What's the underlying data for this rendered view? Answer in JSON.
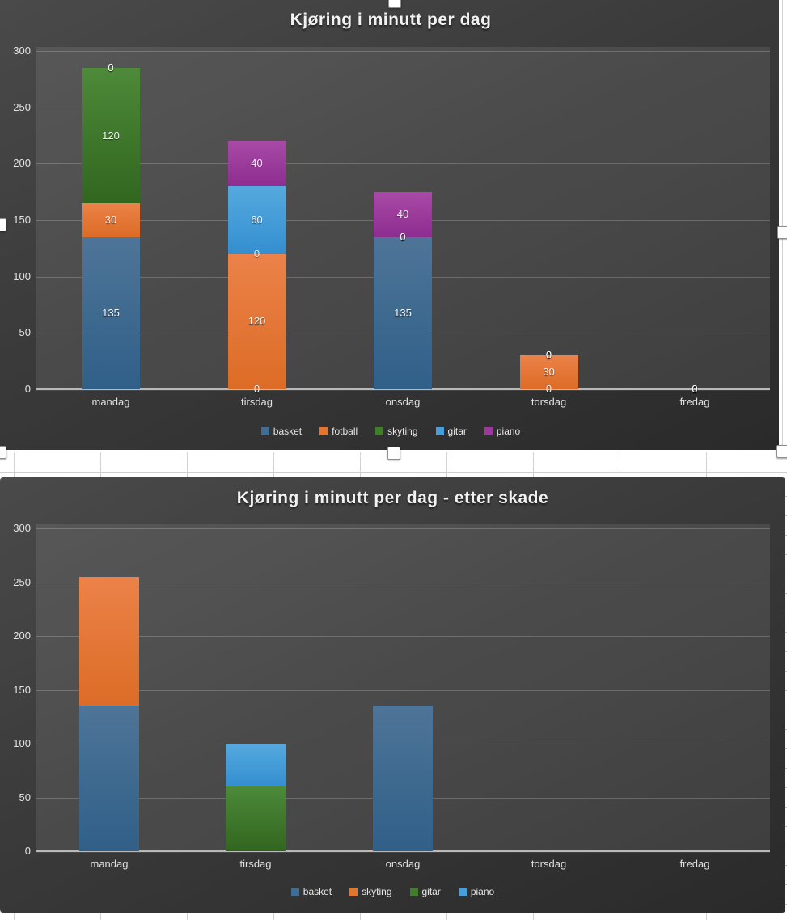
{
  "chart_data": [
    {
      "type": "stacked-bar",
      "title": "Kjøring i minutt per dag",
      "categories": [
        "mandag",
        "tirsdag",
        "onsdag",
        "torsdag",
        "fredag"
      ],
      "series": [
        {
          "name": "basket",
          "color": "#3f6d94",
          "color_light": "#4e7598",
          "color_dark": "#305f88",
          "values": [
            135,
            0,
            135,
            0,
            0
          ]
        },
        {
          "name": "fotball",
          "color": "#e4752f",
          "color_light": "#ec8249",
          "color_dark": "#dc6c26",
          "values": [
            30,
            120,
            0,
            30,
            0
          ]
        },
        {
          "name": "skyting",
          "color": "#427d2e",
          "color_light": "#4d8a39",
          "color_dark": "#31661f",
          "values": [
            120,
            0,
            0,
            0,
            0
          ]
        },
        {
          "name": "gitar",
          "color": "#469edb",
          "color_light": "#55a9de",
          "color_dark": "#348fd0",
          "values": [
            0,
            60,
            0,
            0,
            0
          ]
        },
        {
          "name": "piano",
          "color": "#9c3a9b",
          "color_light": "#a94aa6",
          "color_dark": "#8d2d90",
          "values": [
            0,
            40,
            40,
            0,
            0
          ]
        }
      ],
      "ylim": [
        0,
        300
      ],
      "yticks": [
        0,
        50,
        100,
        150,
        200,
        250,
        300
      ],
      "grid": true,
      "legend_position": "bottom",
      "data_labels": true
    },
    {
      "type": "stacked-bar",
      "title": "Kjøring i minutt per dag - etter skade",
      "categories": [
        "mandag",
        "tirsdag",
        "onsdag",
        "torsdag",
        "fredag"
      ],
      "series": [
        {
          "name": "basket",
          "color": "#3f6d94",
          "color_light": "#4e7598",
          "color_dark": "#305f88",
          "values": [
            135,
            0,
            135,
            0,
            0
          ]
        },
        {
          "name": "skyting",
          "color": "#e4752f",
          "color_light": "#ec8249",
          "color_dark": "#dc6c26",
          "values": [
            120,
            0,
            0,
            0,
            0
          ]
        },
        {
          "name": "gitar",
          "color": "#427d2e",
          "color_light": "#4d8a39",
          "color_dark": "#31661f",
          "values": [
            0,
            60,
            0,
            0,
            0
          ]
        },
        {
          "name": "piano",
          "color": "#469edb",
          "color_light": "#55a9de",
          "color_dark": "#348fd0",
          "values": [
            0,
            40,
            0,
            0,
            0
          ]
        }
      ],
      "ylim": [
        0,
        300
      ],
      "yticks": [
        0,
        50,
        100,
        150,
        200,
        250,
        300
      ],
      "grid": true,
      "legend_position": "bottom",
      "data_labels": false
    }
  ]
}
